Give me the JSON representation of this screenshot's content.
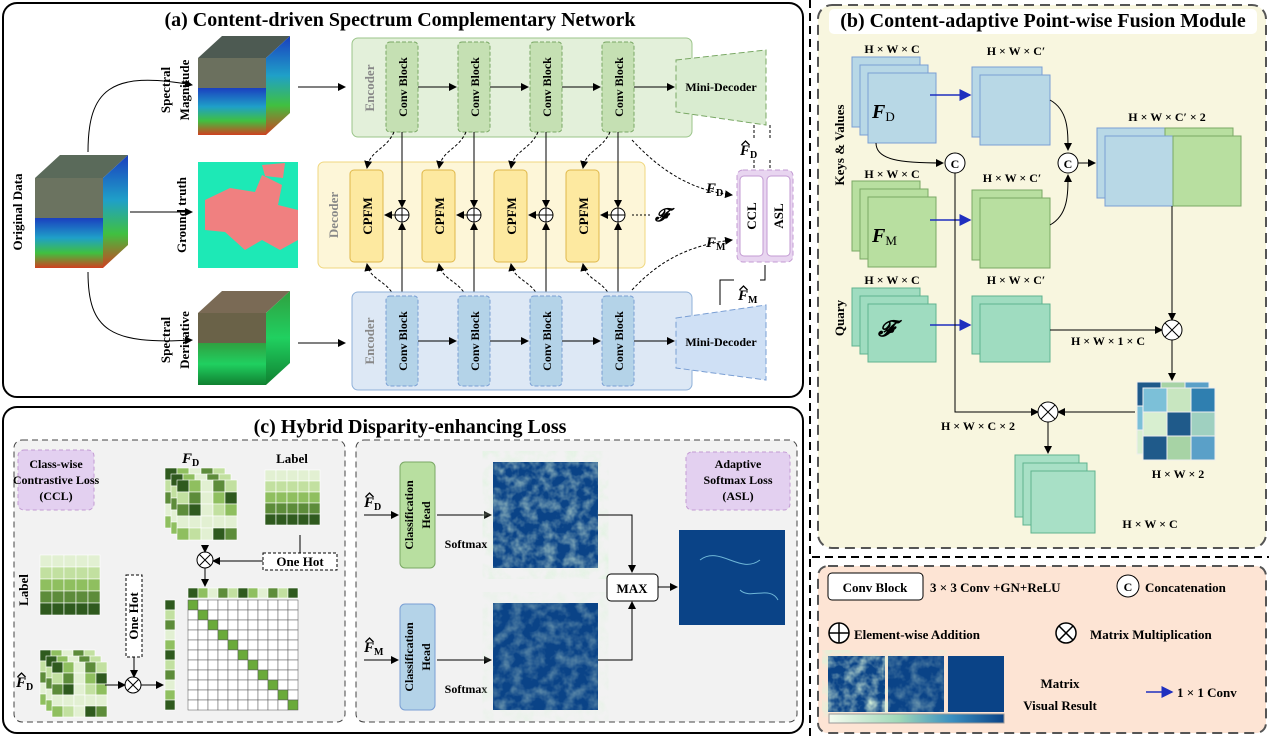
{
  "colors": {
    "encoder_top": "#e3f0da",
    "encoder_bottom": "#dde8f5",
    "decoder": "#fdf6d8",
    "loss": "#e8d5f0",
    "panel_b": "#f8f6df",
    "legend": "#fde4d4",
    "conv_1x1_arrow": "#1f2fbf"
  },
  "panel_a": {
    "title": "(a) Content-driven Spectrum Complementary Network",
    "original_data": "Original Data",
    "spectral_magnitude": [
      "Spectral",
      "Magnitude"
    ],
    "ground_truth": "Ground truth",
    "spectral_derivative": [
      "Spectral",
      "Derivative"
    ],
    "encoder": "Encoder",
    "decoder": "Decoder",
    "conv_block": "Conv Block",
    "cpfm": "CPFM",
    "mini_decoder": "Mini-Decoder",
    "ccl": "CCL",
    "asl": "ASL",
    "F": "F",
    "D": "D",
    "M": "M",
    "script_F": "𝓕"
  },
  "panel_b": {
    "title": "(b) Content-adaptive Point-wise Fusion Module",
    "keys_values": "Keys & Values",
    "query": "Quary",
    "dim_hwc": "H × W × C",
    "dim_hwc_prime": "H × W × C′",
    "dim_concat": "H × W × C′ × 2",
    "dim_query": "H × W × 1 × C",
    "dim_hwc2": "H × W × C × 2",
    "dim_hw2": "H × W × 2",
    "dim_out": "H × W × C",
    "concat_symbol": "C"
  },
  "panel_c": {
    "title": "(c) Hybrid Disparity-enhancing Loss",
    "ccl_label": [
      "Class-wise",
      "Contrastive Loss",
      "(CCL)"
    ],
    "label": "Label",
    "one_hot": "One Hot",
    "classification_head": [
      "Classification",
      "Head"
    ],
    "softmax": "Softmax",
    "max": "MAX",
    "asl_label": [
      "Adaptive",
      "Softmax Loss",
      "(ASL)"
    ]
  },
  "legend": {
    "conv_block": "Conv Block",
    "conv_desc": "3 × 3 Conv +GN+ReLU",
    "concat_symbol": "C",
    "concatenation": "Concatenation",
    "addition": "Element-wise Addition",
    "multiplication": "Matrix Multiplication",
    "matrix_visual": [
      "Matrix",
      "Visual Result"
    ],
    "conv1x1": "1 × 1 Conv"
  }
}
